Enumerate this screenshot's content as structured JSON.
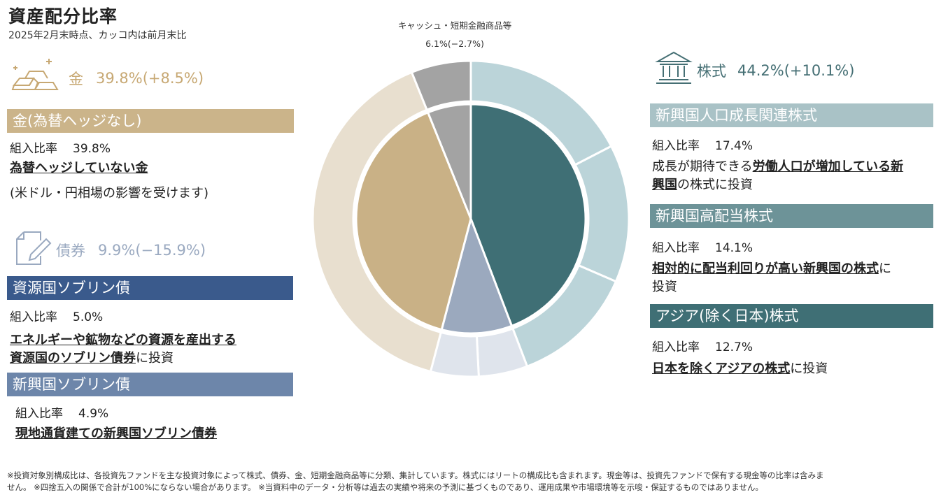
{
  "page": {
    "title": "資産配分比率",
    "subtitle": "2025年2月末時点、カッコ内は前月末比"
  },
  "gold": {
    "label": "金",
    "pct": "39.8%(+8.5%)",
    "band": "金(為替ヘッジなし)",
    "ratio_label": "組入比率",
    "ratio": "39.8%",
    "desc_u": "為替ヘッジしていない金",
    "note": "(米ドル・円相場の影響を受けます)"
  },
  "bond": {
    "label": "債券",
    "pct": "9.9%(−15.9%)",
    "items": [
      {
        "band": "資源国ソブリン債",
        "ratio_label": "組入比率",
        "ratio": "5.0%",
        "desc_u1": "エネルギーや鉱物などの資源を産出する",
        "desc_u2": "資源国のソブリン債券",
        "desc_t": "に投資"
      },
      {
        "band": "新興国ソブリン債",
        "ratio_label": "組入比率",
        "ratio": "4.9%",
        "desc_u": "現地通貨建ての新興国ソブリン債券"
      }
    ]
  },
  "equity": {
    "label": "株式",
    "pct": "44.2%(+10.1%)",
    "items": [
      {
        "band": "新興国人口成長関連株式",
        "ratio_label": "組入比率",
        "ratio": "17.4%",
        "desc_t1": "成長が期待できる",
        "desc_u1": "労働人口が増加している新",
        "desc_u2": "興国",
        "desc_t2": "の株式に投資"
      },
      {
        "band": "新興国高配当株式",
        "ratio_label": "組入比率",
        "ratio": "14.1%",
        "desc_u": "相対的に配当利回りが高い新興国の株式",
        "desc_t1": "に",
        "desc_t2": "投資"
      },
      {
        "band": "アジア(除く日本)株式",
        "ratio_label": "組入比率",
        "ratio": "12.7%",
        "desc_u": "日本を除くアジアの株式",
        "desc_t": "に投資"
      }
    ]
  },
  "chart_data": {
    "type": "pie",
    "subtype": "double-ring donut",
    "direction": "clockwise from 12 o'clock",
    "inner": [
      {
        "name": "株式",
        "value": 44.2,
        "color": "#3f6f75"
      },
      {
        "name": "債券",
        "value": 9.9,
        "color": "#9ba9be"
      },
      {
        "name": "金",
        "value": 39.8,
        "color": "#c9b186"
      },
      {
        "name": "キャッシュ・短期金融商品等",
        "value": 6.1,
        "color": "#a3a3a3"
      }
    ],
    "outer": [
      {
        "name": "新興国人口成長関連株式",
        "value": 17.4,
        "color": "#bbd4d9"
      },
      {
        "name": "新興国高配当株式",
        "value": 14.1,
        "color": "#bbd4d9"
      },
      {
        "name": "アジア(除く日本)株式",
        "value": 12.7,
        "color": "#bbd4d9"
      },
      {
        "name": "資源国ソブリン債",
        "value": 5.0,
        "color": "#dfe4ec"
      },
      {
        "name": "新興国ソブリン債",
        "value": 4.9,
        "color": "#dfe4ec"
      },
      {
        "name": "金(為替ヘッジなし)",
        "value": 39.8,
        "color": "#e8dfcf"
      },
      {
        "name": "キャッシュ・短期金融商品等",
        "value": 6.1,
        "color": "#a3a3a3"
      }
    ],
    "annotation": {
      "label": "キャッシュ・短期金融商品等",
      "value": "6.1%(−2.7%)"
    }
  },
  "footnote": {
    "line1": "※投資対象別構成比は、各投資先ファンドを主な投資対象によって株式、債券、金、短期金融商品等に分類、集計しています。株式にはリートの構成比も含まれます。現金等は、投資先ファンドで保有する現金等の比率は含みま",
    "line2": "せん。 ※四捨五入の関係で合計が100%にならない場合があります。 ※当資料中のデータ・分析等は過去の実績や将来の予測に基づくものであり、運用成果や市場環境等を示唆・保証するものではありません。"
  }
}
